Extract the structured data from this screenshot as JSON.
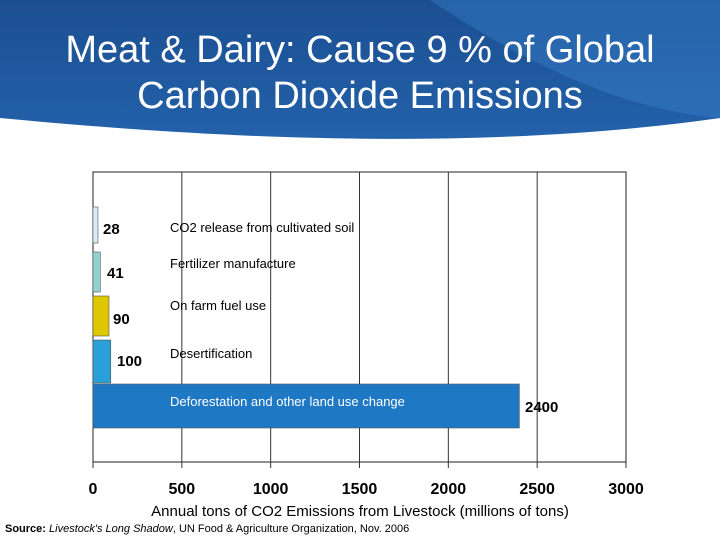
{
  "slide": {
    "title_line_1": "Meat & Dairy:  Cause 9 % of Global",
    "title_line_2": "Carbon Dioxide Emissions",
    "header_color": "#1f5a9e",
    "swoosh_color": "#3f8ad8"
  },
  "chart_data": {
    "type": "bar",
    "orientation": "horizontal",
    "xlabel": "Annual tons of CO2 Emissions from Livestock (millions of tons)",
    "xlim": [
      0,
      3000
    ],
    "xticks": [
      "0",
      "500",
      "1000",
      "1500",
      "2000",
      "2500",
      "3000"
    ],
    "grid": "vertical",
    "bars": [
      {
        "label": "CO2 release from cultivated soil",
        "value": 28,
        "value_label": "28",
        "color": "#d8ecf8"
      },
      {
        "label": "Fertilizer manufacture",
        "value": 41,
        "value_label": "41",
        "color": "#8fd3cf"
      },
      {
        "label": "On farm fuel use",
        "value": 90,
        "value_label": "90",
        "color": "#e0c800"
      },
      {
        "label": "Desertification",
        "value": 100,
        "value_label": "100",
        "color": "#2aa0d8"
      },
      {
        "label": "Deforestation and other land use change",
        "value": 2400,
        "value_label": "2400",
        "color": "#1f78c4"
      }
    ]
  },
  "source": {
    "label": "Source:",
    "pre": "Livestock's Long Shadow",
    "post": ", UN Food & Agriculture Organization, Nov. 2006"
  }
}
